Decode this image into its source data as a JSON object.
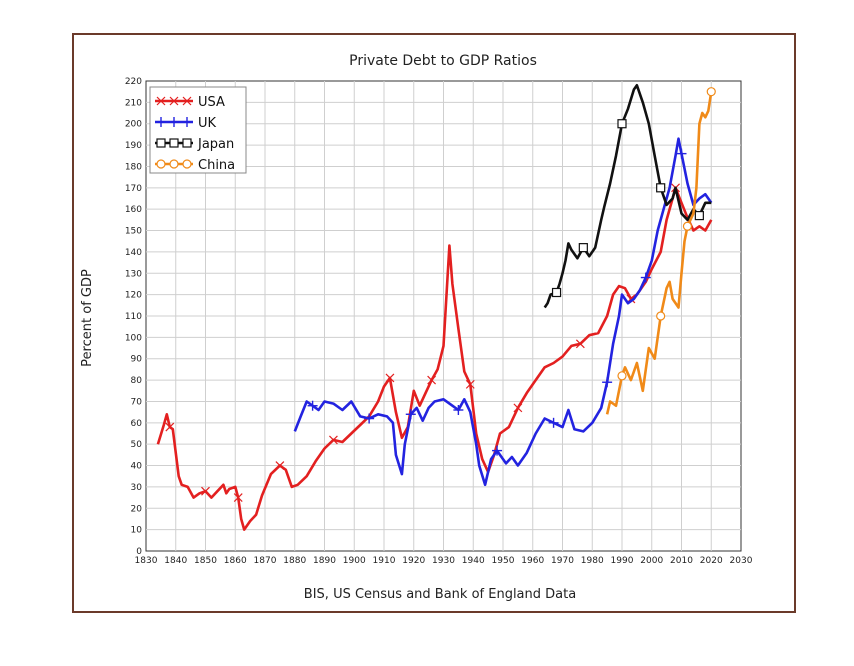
{
  "chart_data": {
    "type": "line",
    "title": "Private Debt to GDP Ratios",
    "xlabel": "BIS, US Census and Bank of England Data",
    "ylabel": "Percent of GDP",
    "xlim": [
      1830,
      2030
    ],
    "ylim": [
      0,
      220
    ],
    "x_ticks": [
      1830,
      1840,
      1850,
      1860,
      1870,
      1880,
      1890,
      1900,
      1910,
      1920,
      1930,
      1940,
      1950,
      1960,
      1970,
      1980,
      1990,
      2000,
      2010,
      2020,
      2030
    ],
    "y_ticks": [
      0,
      10,
      20,
      30,
      40,
      50,
      60,
      70,
      80,
      90,
      100,
      110,
      120,
      130,
      140,
      150,
      160,
      170,
      180,
      190,
      200,
      210,
      220
    ],
    "grid": true,
    "legend_position": "top-left",
    "series": [
      {
        "name": "USA",
        "color": "#e32020",
        "marker": "x",
        "points": [
          [
            1834,
            50
          ],
          [
            1836,
            59
          ],
          [
            1837,
            64
          ],
          [
            1838,
            58
          ],
          [
            1839,
            57
          ],
          [
            1841,
            35
          ],
          [
            1842,
            31
          ],
          [
            1844,
            30
          ],
          [
            1846,
            25
          ],
          [
            1848,
            27
          ],
          [
            1850,
            28
          ],
          [
            1852,
            25
          ],
          [
            1854,
            28
          ],
          [
            1856,
            31
          ],
          [
            1857,
            27
          ],
          [
            1858,
            29
          ],
          [
            1860,
            30
          ],
          [
            1861,
            25
          ],
          [
            1862,
            15
          ],
          [
            1863,
            10
          ],
          [
            1865,
            14
          ],
          [
            1867,
            17
          ],
          [
            1869,
            26
          ],
          [
            1872,
            36
          ],
          [
            1875,
            40
          ],
          [
            1877,
            38
          ],
          [
            1879,
            30
          ],
          [
            1881,
            31
          ],
          [
            1884,
            35
          ],
          [
            1887,
            42
          ],
          [
            1890,
            48
          ],
          [
            1893,
            52
          ],
          [
            1896,
            51
          ],
          [
            1899,
            55
          ],
          [
            1902,
            59
          ],
          [
            1905,
            63
          ],
          [
            1908,
            70
          ],
          [
            1910,
            77
          ],
          [
            1912,
            81
          ],
          [
            1914,
            65
          ],
          [
            1916,
            53
          ],
          [
            1918,
            58
          ],
          [
            1920,
            75
          ],
          [
            1922,
            68
          ],
          [
            1924,
            74
          ],
          [
            1926,
            80
          ],
          [
            1928,
            85
          ],
          [
            1930,
            96
          ],
          [
            1932,
            143
          ],
          [
            1933,
            125
          ],
          [
            1935,
            104
          ],
          [
            1937,
            84
          ],
          [
            1939,
            78
          ],
          [
            1941,
            55
          ],
          [
            1943,
            43
          ],
          [
            1945,
            37
          ],
          [
            1947,
            45
          ],
          [
            1949,
            55
          ],
          [
            1952,
            58
          ],
          [
            1955,
            67
          ],
          [
            1958,
            74
          ],
          [
            1961,
            80
          ],
          [
            1964,
            86
          ],
          [
            1967,
            88
          ],
          [
            1970,
            91
          ],
          [
            1973,
            96
          ],
          [
            1976,
            97
          ],
          [
            1979,
            101
          ],
          [
            1982,
            102
          ],
          [
            1985,
            110
          ],
          [
            1987,
            120
          ],
          [
            1989,
            124
          ],
          [
            1991,
            123
          ],
          [
            1993,
            118
          ],
          [
            1995,
            120
          ],
          [
            1998,
            126
          ],
          [
            2000,
            132
          ],
          [
            2003,
            140
          ],
          [
            2005,
            155
          ],
          [
            2007,
            165
          ],
          [
            2008,
            170
          ],
          [
            2010,
            163
          ],
          [
            2012,
            156
          ],
          [
            2014,
            150
          ],
          [
            2016,
            152
          ],
          [
            2018,
            150
          ],
          [
            2020,
            155
          ]
        ]
      },
      {
        "name": "UK",
        "color": "#2323e0",
        "marker": "+",
        "points": [
          [
            1880,
            56
          ],
          [
            1882,
            63
          ],
          [
            1884,
            70
          ],
          [
            1886,
            68
          ],
          [
            1888,
            66
          ],
          [
            1890,
            70
          ],
          [
            1893,
            69
          ],
          [
            1896,
            66
          ],
          [
            1899,
            70
          ],
          [
            1902,
            63
          ],
          [
            1905,
            62
          ],
          [
            1908,
            64
          ],
          [
            1911,
            63
          ],
          [
            1913,
            60
          ],
          [
            1914,
            45
          ],
          [
            1916,
            36
          ],
          [
            1917,
            50
          ],
          [
            1919,
            64
          ],
          [
            1921,
            67
          ],
          [
            1923,
            61
          ],
          [
            1925,
            67
          ],
          [
            1927,
            70
          ],
          [
            1930,
            71
          ],
          [
            1933,
            68
          ],
          [
            1935,
            66
          ],
          [
            1937,
            71
          ],
          [
            1939,
            65
          ],
          [
            1941,
            50
          ],
          [
            1942,
            40
          ],
          [
            1944,
            31
          ],
          [
            1946,
            43
          ],
          [
            1948,
            47
          ],
          [
            1951,
            41
          ],
          [
            1953,
            44
          ],
          [
            1955,
            40
          ],
          [
            1958,
            46
          ],
          [
            1961,
            55
          ],
          [
            1964,
            62
          ],
          [
            1967,
            60
          ],
          [
            1970,
            58
          ],
          [
            1972,
            66
          ],
          [
            1974,
            57
          ],
          [
            1977,
            56
          ],
          [
            1980,
            60
          ],
          [
            1983,
            67
          ],
          [
            1985,
            79
          ],
          [
            1987,
            97
          ],
          [
            1989,
            110
          ],
          [
            1990,
            120
          ],
          [
            1992,
            116
          ],
          [
            1994,
            118
          ],
          [
            1996,
            122
          ],
          [
            1998,
            128
          ],
          [
            2000,
            136
          ],
          [
            2002,
            150
          ],
          [
            2004,
            160
          ],
          [
            2006,
            170
          ],
          [
            2008,
            185
          ],
          [
            2009,
            193
          ],
          [
            2010,
            186
          ],
          [
            2012,
            172
          ],
          [
            2014,
            162
          ],
          [
            2016,
            165
          ],
          [
            2018,
            167
          ],
          [
            2020,
            163
          ]
        ]
      },
      {
        "name": "Japan",
        "color": "#111111",
        "marker": "square",
        "points": [
          [
            1964,
            114
          ],
          [
            1965,
            116
          ],
          [
            1966,
            120
          ],
          [
            1968,
            121
          ],
          [
            1969,
            125
          ],
          [
            1970,
            130
          ],
          [
            1971,
            136
          ],
          [
            1972,
            144
          ],
          [
            1973,
            141
          ],
          [
            1975,
            137
          ],
          [
            1977,
            142
          ],
          [
            1979,
            138
          ],
          [
            1981,
            142
          ],
          [
            1983,
            155
          ],
          [
            1984,
            161
          ],
          [
            1986,
            172
          ],
          [
            1988,
            185
          ],
          [
            1990,
            200
          ],
          [
            1992,
            207
          ],
          [
            1994,
            216
          ],
          [
            1995,
            218
          ],
          [
            1997,
            210
          ],
          [
            1999,
            200
          ],
          [
            2001,
            185
          ],
          [
            2003,
            170
          ],
          [
            2005,
            162
          ],
          [
            2007,
            165
          ],
          [
            2008,
            170
          ],
          [
            2010,
            158
          ],
          [
            2012,
            155
          ],
          [
            2014,
            160
          ],
          [
            2016,
            157
          ],
          [
            2018,
            163
          ],
          [
            2020,
            163
          ]
        ]
      },
      {
        "name": "China",
        "color": "#f08a18",
        "marker": "o",
        "points": [
          [
            1985,
            64
          ],
          [
            1986,
            70
          ],
          [
            1988,
            68
          ],
          [
            1990,
            82
          ],
          [
            1991,
            86
          ],
          [
            1993,
            80
          ],
          [
            1995,
            88
          ],
          [
            1997,
            75
          ],
          [
            1999,
            95
          ],
          [
            2001,
            90
          ],
          [
            2003,
            110
          ],
          [
            2005,
            123
          ],
          [
            2006,
            126
          ],
          [
            2007,
            118
          ],
          [
            2009,
            114
          ],
          [
            2010,
            130
          ],
          [
            2011,
            145
          ],
          [
            2012,
            152
          ],
          [
            2014,
            158
          ],
          [
            2015,
            170
          ],
          [
            2016,
            200
          ],
          [
            2017,
            205
          ],
          [
            2018,
            203
          ],
          [
            2019,
            206
          ],
          [
            2020,
            215
          ]
        ]
      }
    ]
  }
}
